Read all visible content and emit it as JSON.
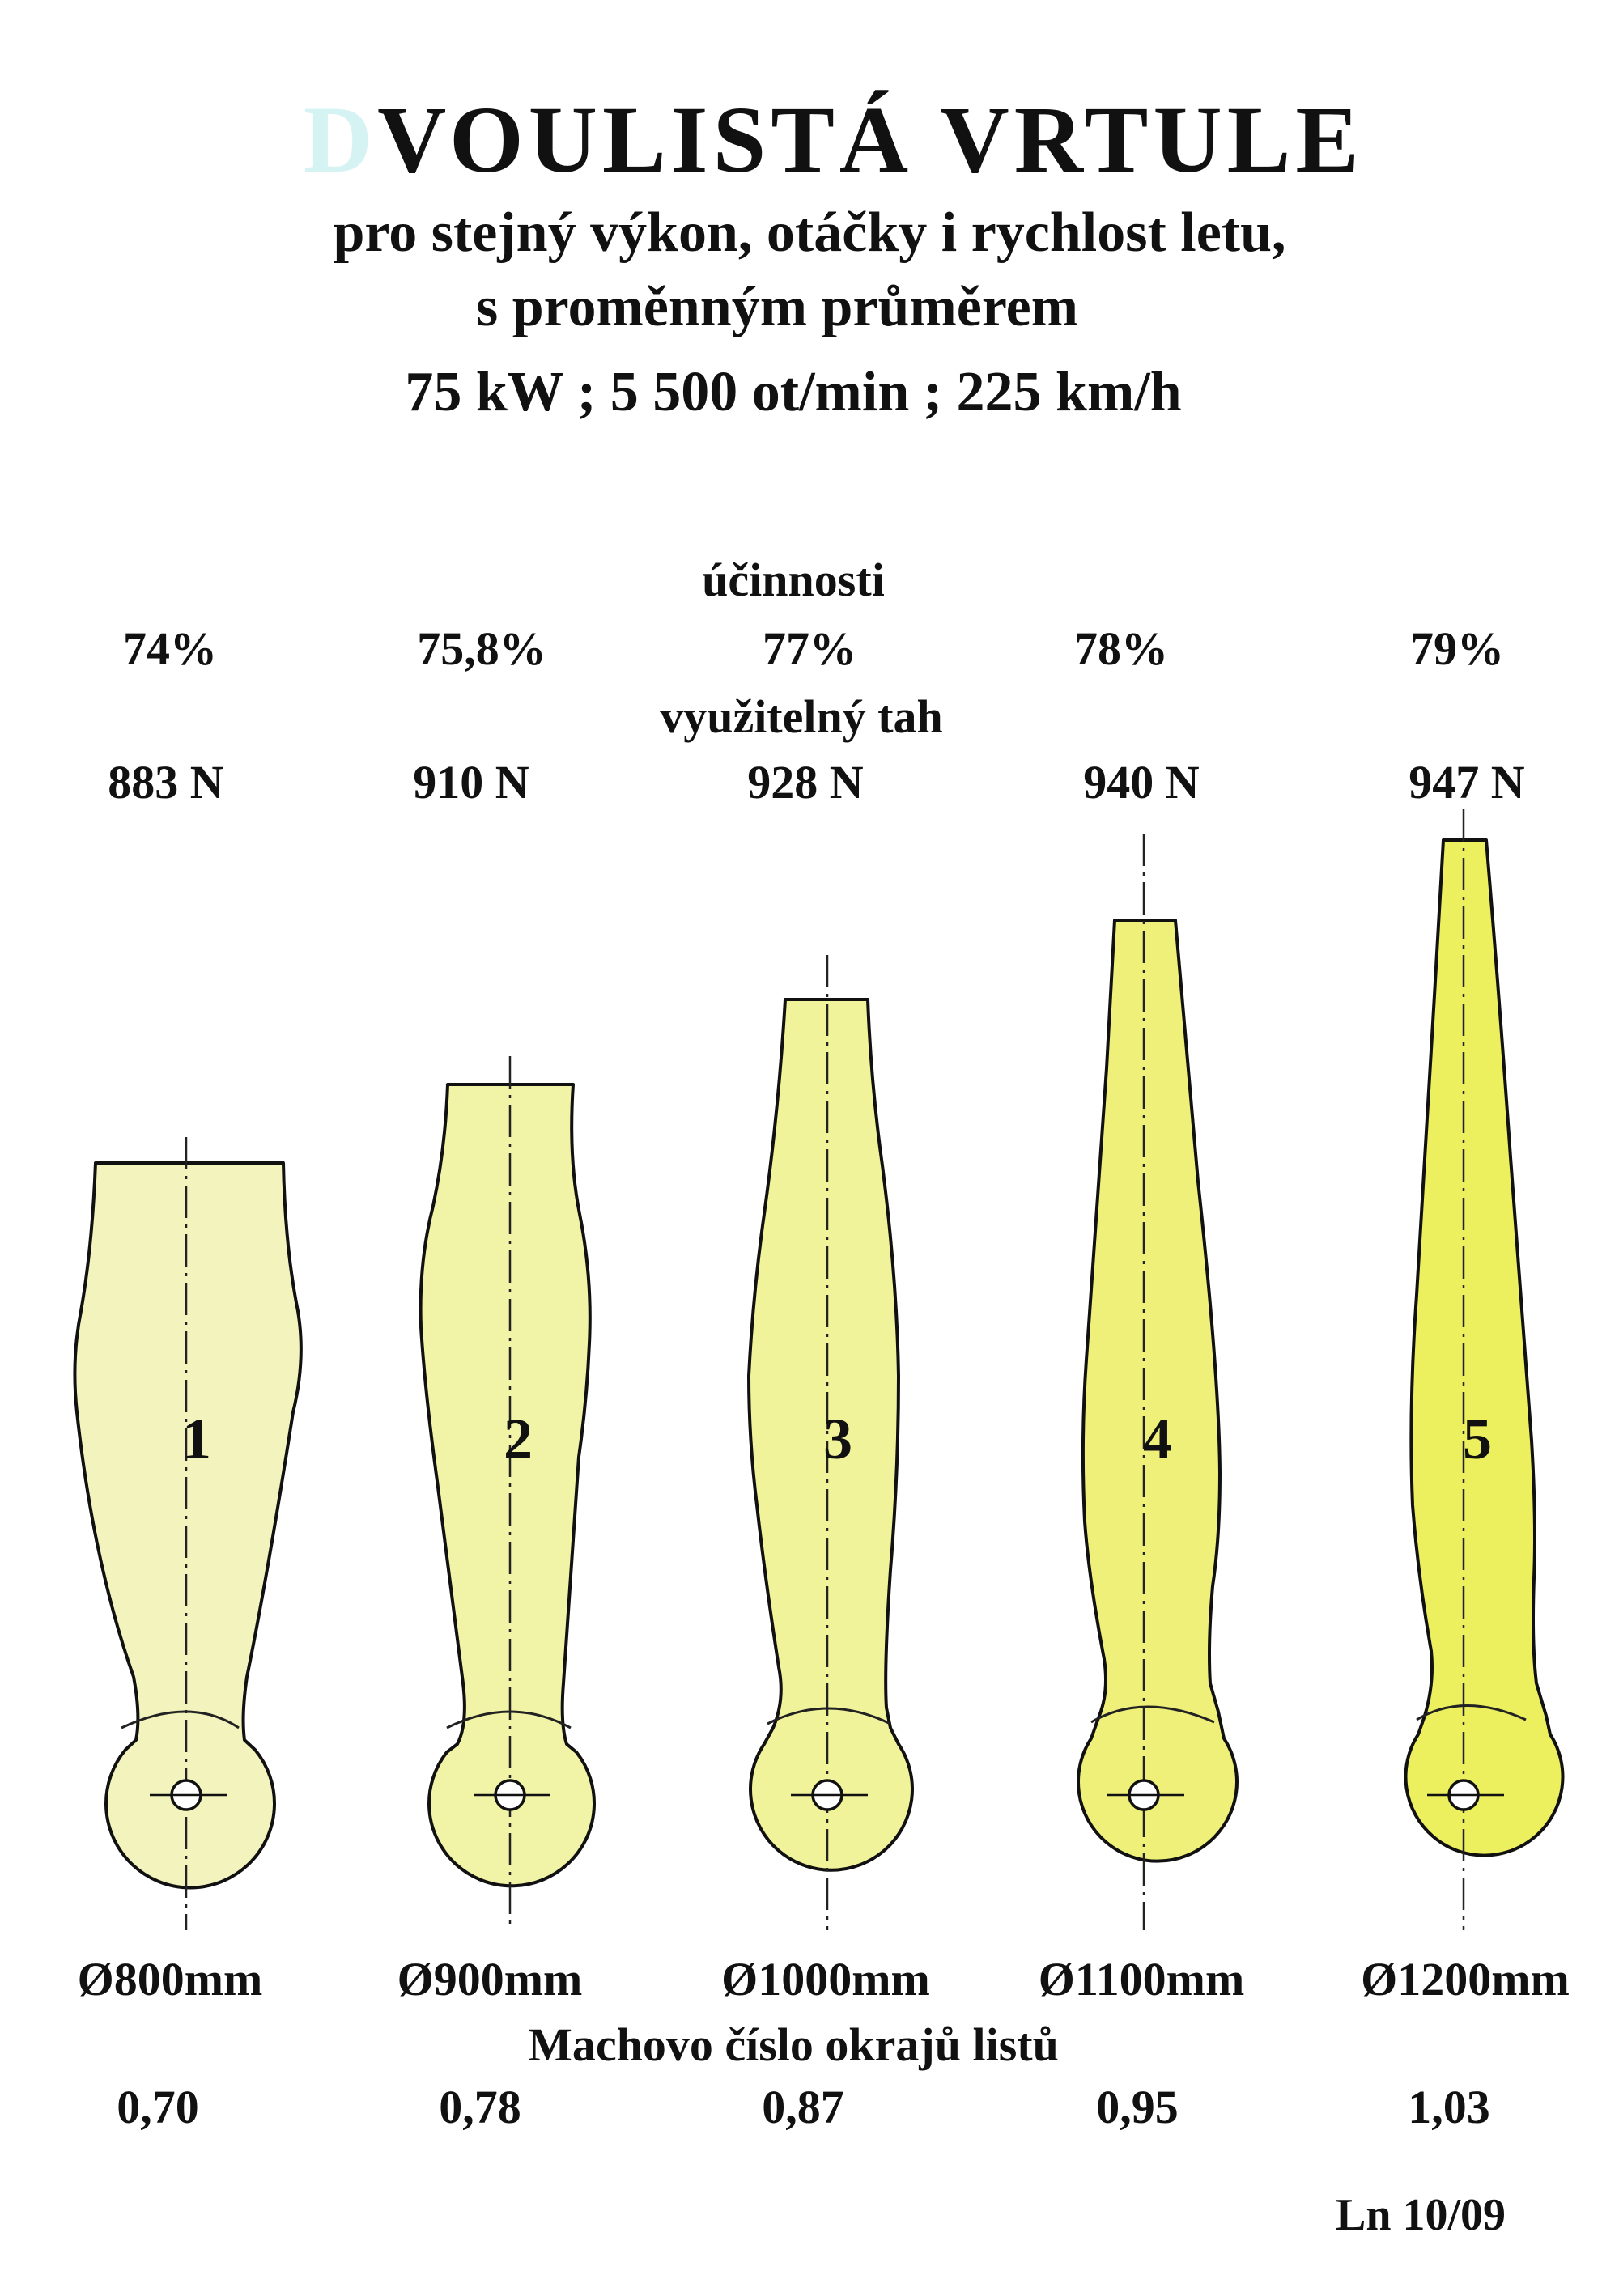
{
  "header": {
    "title_initial": "D",
    "title_rest": "VOULISTÁ  VRTULE",
    "subtitle_line1": "pro stejný výkon, otáčky i rychlost letu,",
    "subtitle_line2": "s proměnným průměrem",
    "specs": "75 kW ; 5 500 ot/min ; 225 km/h"
  },
  "labels": {
    "efficiency": "účinnosti",
    "thrust": "využitelný tah",
    "mach": "Machovo číslo okrajů listů"
  },
  "propellers": [
    {
      "number": "1",
      "efficiency": "74%",
      "thrust": "883 N",
      "diameter": "Ø800mm",
      "mach": "0,70",
      "color": "#f2f3bd"
    },
    {
      "number": "2",
      "efficiency": "75,8%",
      "thrust": "910 N",
      "diameter": "Ø900mm",
      "mach": "0,78",
      "color": "#f1f3a6"
    },
    {
      "number": "3",
      "efficiency": "77%",
      "thrust": "928 N",
      "diameter": "Ø1000mm",
      "mach": "0,87",
      "color": "#f1f39a"
    },
    {
      "number": "4",
      "efficiency": "78%",
      "thrust": "940 N",
      "diameter": "Ø1100mm",
      "mach": "0,95",
      "color": "#eff07a"
    },
    {
      "number": "5",
      "efficiency": "79%",
      "thrust": "947 N",
      "diameter": "Ø1200mm",
      "mach": "1,03",
      "color": "#ecef5e"
    }
  ],
  "credit": "Ln 10/09"
}
